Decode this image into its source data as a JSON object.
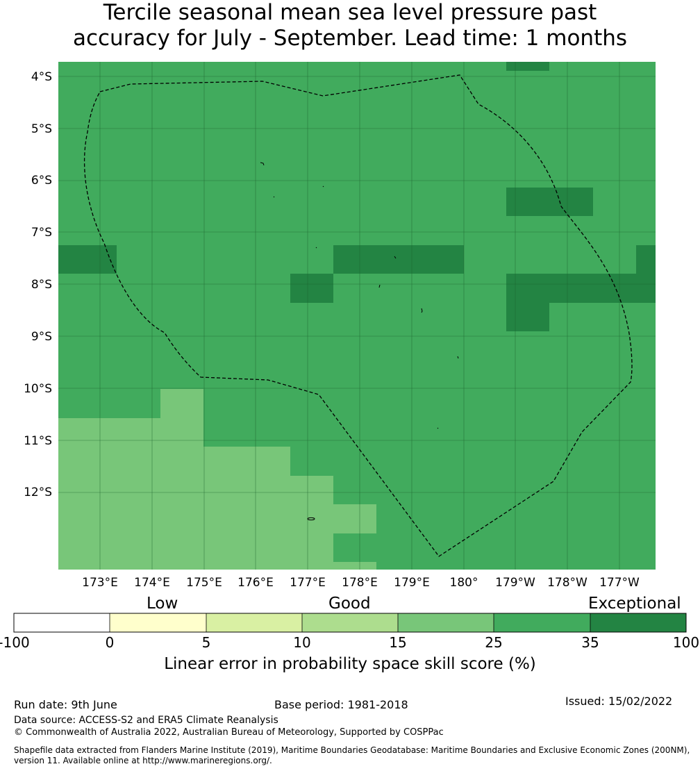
{
  "title": {
    "line1": "Tercile seasonal mean sea level pressure past",
    "line2": "accuracy for July - September. Lead time: 1 months"
  },
  "map": {
    "lat_labels": [
      "4°S",
      "5°S",
      "6°S",
      "7°S",
      "8°S",
      "9°S",
      "10°S",
      "11°S",
      "12°S"
    ],
    "lon_labels": [
      "173°E",
      "174°E",
      "175°E",
      "176°E",
      "177°E",
      "178°E",
      "179°E",
      "180°",
      "179°W",
      "178°W",
      "177°W"
    ],
    "colors": {
      "c15_25": "#78c679",
      "c25_35": "#41ab5d",
      "c35_100": "#238443",
      "grid": "#1b5e2c",
      "boundary": "#000000"
    }
  },
  "colorbar": {
    "categories": [
      "Low",
      "Good",
      "Exceptional"
    ],
    "ticks": [
      "-100",
      "0",
      "5",
      "10",
      "15",
      "25",
      "35",
      "100"
    ],
    "colors": [
      "#ffffff",
      "#ffffcc",
      "#d9f0a3",
      "#addd8e",
      "#78c679",
      "#41ab5d",
      "#238443"
    ],
    "label": "Linear error in probability space skill score (%)"
  },
  "footer": {
    "run_date": "Run date: 9th June",
    "base_period": "Base period: 1981-2018",
    "issued": "Issued: 15/02/2022",
    "data_source": "Data source: ACCESS-S2 and ERA5 Climate Reanalysis",
    "copyright": "© Commonwealth of Australia 2022, Australian Bureau of Meteorology, Supported by COSPPac",
    "shapefile_line1": "Shapefile data extracted from Flanders Marine Institute (2019), Maritime Boundaries Geodatabase: Maritime Boundaries and Exclusive Economic Zones (200NM),",
    "shapefile_line2": "version 11. Available online at http://www.marineregions.org/."
  }
}
